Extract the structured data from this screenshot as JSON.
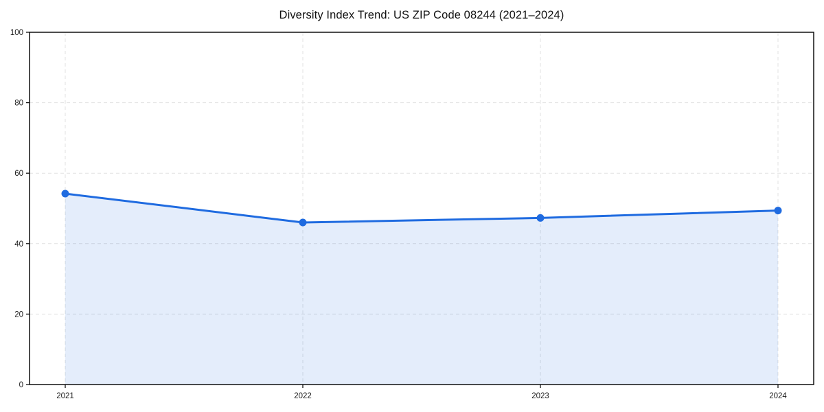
{
  "chart_data": {
    "type": "area",
    "title": "Diversity Index Trend: US ZIP Code 08244 (2021–2024)",
    "categories": [
      "2021",
      "2022",
      "2023",
      "2024"
    ],
    "values": [
      54.2,
      46.0,
      47.3,
      49.4
    ],
    "xlabel": "",
    "ylabel": "",
    "ylim": [
      0,
      100
    ],
    "yticks": [
      0,
      20,
      40,
      60,
      80,
      100
    ],
    "grid": true,
    "grid_style": "dashed",
    "legend_position": "none",
    "colors": {
      "line": "#1f6be0",
      "marker": "#1f6be0",
      "fill": "#1f6be0",
      "fill_opacity": 0.12,
      "grid": "#e1e1e1",
      "axis": "#000000",
      "tick_text": "#1a1a1a",
      "background": "#ffffff"
    }
  }
}
